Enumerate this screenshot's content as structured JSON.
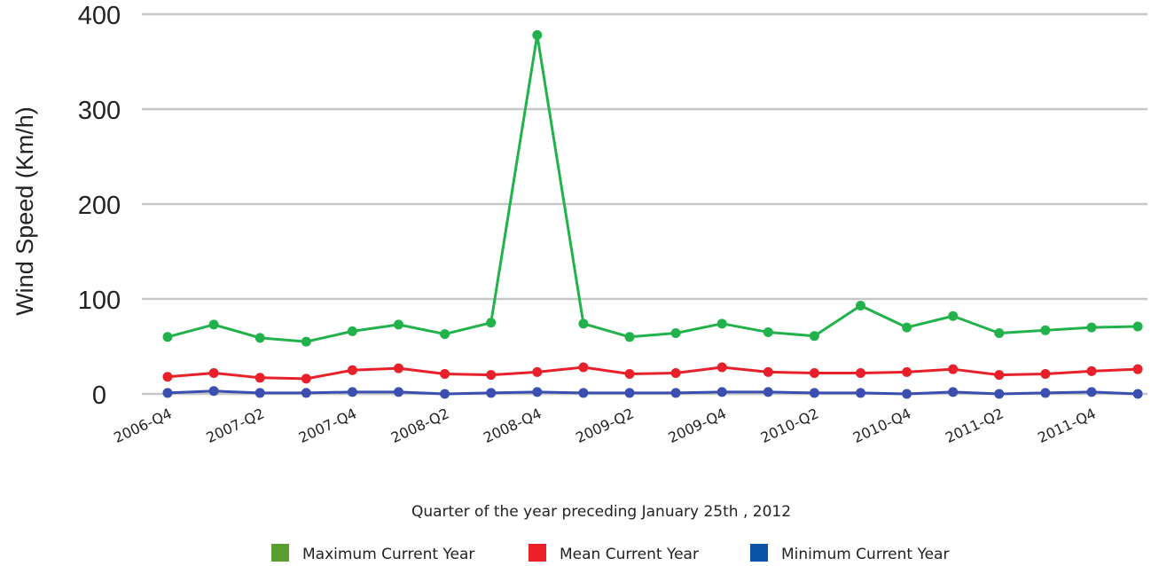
{
  "chart_data": {
    "type": "line",
    "xlabel": "Quarter of the year preceding January 25th , 2012",
    "ylabel": "Wind Speed (Km/h)",
    "ylim": [
      0,
      400
    ],
    "yticks": [
      0,
      100,
      200,
      300,
      400
    ],
    "grid": true,
    "legend_position": "bottom",
    "tick_labels": [
      "2006-Q4",
      "2007-Q2",
      "2007-Q4",
      "2008-Q2",
      "2008-Q4",
      "2009-Q2",
      "2009-Q4",
      "2010-Q2",
      "2010-Q4",
      "2011-Q2",
      "2011-Q4"
    ],
    "categories": [
      "2006-Q4",
      "2007-Q1",
      "2007-Q2",
      "2007-Q3",
      "2007-Q4",
      "2008-Q1",
      "2008-Q2",
      "2008-Q3",
      "2008-Q4",
      "2009-Q1",
      "2009-Q2",
      "2009-Q3",
      "2009-Q4",
      "2010-Q1",
      "2010-Q2",
      "2010-Q3",
      "2010-Q4",
      "2011-Q1",
      "2011-Q2",
      "2011-Q3",
      "2011-Q4",
      "2012-Q1"
    ],
    "series": [
      {
        "name": "Maximum Current Year",
        "color": "#22b24c",
        "legend_color": "#5a9e2f",
        "values": [
          60,
          73,
          59,
          55,
          66,
          73,
          63,
          75,
          378,
          74,
          60,
          64,
          74,
          65,
          61,
          93,
          70,
          82,
          64,
          67,
          70,
          71
        ]
      },
      {
        "name": "Mean Current Year",
        "color": "#e8202a",
        "legend_color": "#ee2027",
        "values": [
          18,
          22,
          17,
          16,
          25,
          27,
          21,
          20,
          23,
          28,
          21,
          22,
          28,
          23,
          22,
          22,
          23,
          26,
          20,
          21,
          24,
          26
        ]
      },
      {
        "name": "Minimum Current Year",
        "color": "#3a4fb0",
        "legend_color": "#0a53a8",
        "values": [
          1,
          3,
          1,
          1,
          2,
          2,
          0,
          1,
          2,
          1,
          1,
          1,
          2,
          2,
          1,
          1,
          0,
          2,
          0,
          1,
          2,
          0
        ]
      }
    ]
  }
}
